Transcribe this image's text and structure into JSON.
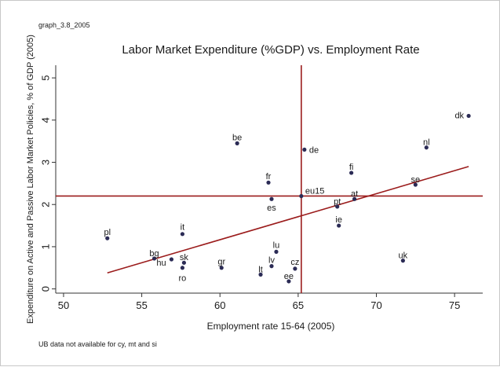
{
  "graph_id": "graph_3.8_2005",
  "note": "UB data not available for cy, mt and si",
  "chart_data": {
    "type": "scatter",
    "title": "Labor Market Expenditure (%GDP) vs. Employment Rate",
    "xlabel": "Employment rate 15-64 (2005)",
    "ylabel": "Expenditure on Active and Passive Labor Market Policies,  % of GDP (2005)",
    "xlim": [
      49.5,
      76.8
    ],
    "ylim": [
      -0.1,
      5.3
    ],
    "xticks": [
      50,
      55,
      60,
      65,
      70,
      75
    ],
    "yticks": [
      0,
      1,
      2,
      3,
      4,
      5
    ],
    "grid": false,
    "points": [
      {
        "label": "dk",
        "x": 75.9,
        "y": 4.1
      },
      {
        "label": "nl",
        "x": 73.2,
        "y": 3.35
      },
      {
        "label": "se",
        "x": 72.5,
        "y": 2.47
      },
      {
        "label": "uk",
        "x": 71.7,
        "y": 0.67
      },
      {
        "label": "at",
        "x": 68.6,
        "y": 2.13
      },
      {
        "label": "fi",
        "x": 68.4,
        "y": 2.75
      },
      {
        "label": "ie",
        "x": 67.6,
        "y": 1.5
      },
      {
        "label": "pt",
        "x": 67.5,
        "y": 1.95
      },
      {
        "label": "de",
        "x": 65.4,
        "y": 3.3
      },
      {
        "label": "eu15",
        "x": 65.2,
        "y": 2.2
      },
      {
        "label": "cz",
        "x": 64.8,
        "y": 0.48
      },
      {
        "label": "ee",
        "x": 64.4,
        "y": 0.18
      },
      {
        "label": "lu",
        "x": 63.6,
        "y": 0.88
      },
      {
        "label": "lv",
        "x": 63.3,
        "y": 0.54
      },
      {
        "label": "es",
        "x": 63.3,
        "y": 2.13
      },
      {
        "label": "fr",
        "x": 63.1,
        "y": 2.52
      },
      {
        "label": "lt",
        "x": 62.6,
        "y": 0.34
      },
      {
        "label": "be",
        "x": 61.1,
        "y": 3.45
      },
      {
        "label": "gr",
        "x": 60.1,
        "y": 0.5
      },
      {
        "label": "it",
        "x": 57.6,
        "y": 1.3
      },
      {
        "label": "sk",
        "x": 57.7,
        "y": 0.62
      },
      {
        "label": "ro",
        "x": 57.6,
        "y": 0.5
      },
      {
        "label": "hu",
        "x": 56.9,
        "y": 0.7
      },
      {
        "label": "bg",
        "x": 55.8,
        "y": 0.72
      },
      {
        "label": "pl",
        "x": 52.8,
        "y": 1.2
      }
    ],
    "fit_line": {
      "x": [
        52.8,
        75.9
      ],
      "y": [
        0.38,
        2.9
      ]
    },
    "reference_lines": {
      "x": 65.2,
      "y": 2.2
    },
    "colors": {
      "points": "#2b2b55",
      "fit_line": "#9b1c1c",
      "reference_lines": "#9b1c1c",
      "axis": "#333333"
    }
  }
}
